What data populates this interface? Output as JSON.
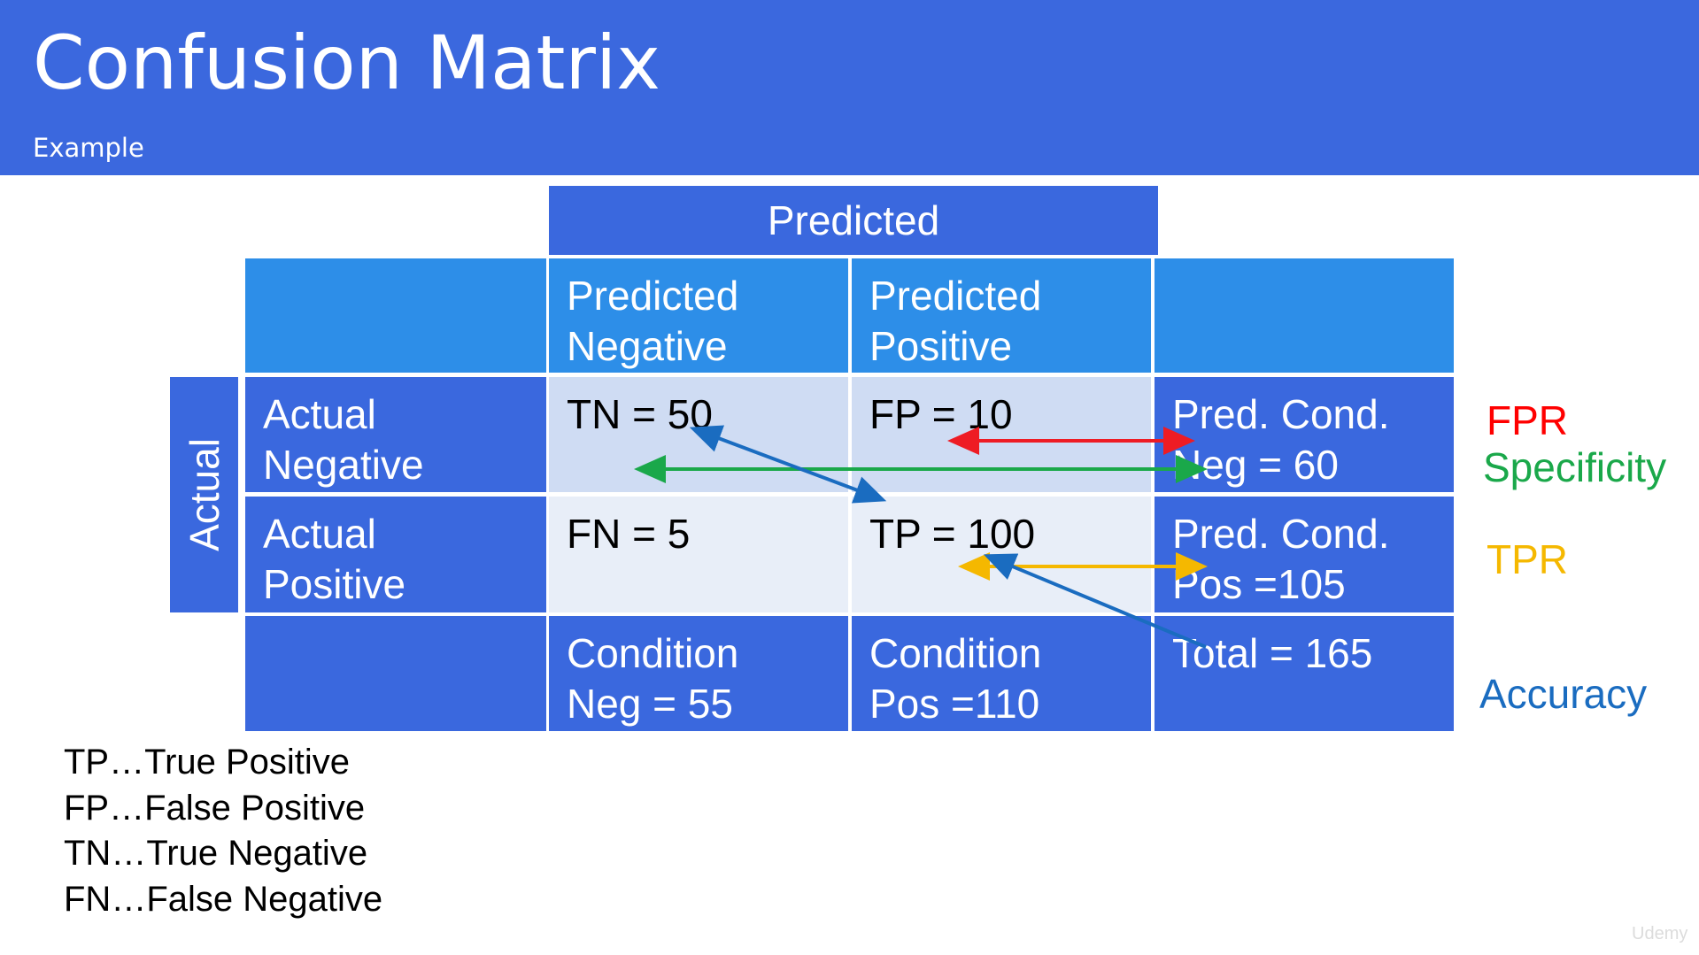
{
  "header": {
    "title": "Confusion Matrix",
    "subtitle": "Example",
    "color": "#3b68de"
  },
  "matrix": {
    "predicted_label": "Predicted",
    "actual_label": "Actual",
    "col_headers": [
      "Predicted\nNegative",
      "Predicted\nPositive"
    ],
    "rows": [
      {
        "label": "Actual\nNegative",
        "negative": "TN = 50",
        "positive": "FP = 10",
        "total": "Pred. Cond.\nNeg =  60"
      },
      {
        "label": "Actual\nPositive",
        "negative": "FN = 5",
        "positive": "TP = 100",
        "total": "Pred. Cond.\nPos =105"
      }
    ],
    "footer": {
      "negative": "Condition\nNeg = 55",
      "positive": "Condition\nPos =110",
      "total": "Total = 165"
    }
  },
  "metrics": [
    {
      "label": "FPR",
      "color": "#ff0000"
    },
    {
      "label": "Specificity",
      "color": "#1aa84a"
    },
    {
      "label": "TPR",
      "color": "#f5b800"
    },
    {
      "label": "Accuracy",
      "color": "#1a6cc0"
    }
  ],
  "legend": [
    "TP…True Positive",
    "FP…False Positive",
    "TN…True Negative",
    "FN…False Negative"
  ],
  "arrow_colors": {
    "red": "#ee1c24",
    "green": "#1aa84a",
    "orange": "#f5b800",
    "blue": "#1a6cc0"
  },
  "watermark": "Udemy"
}
